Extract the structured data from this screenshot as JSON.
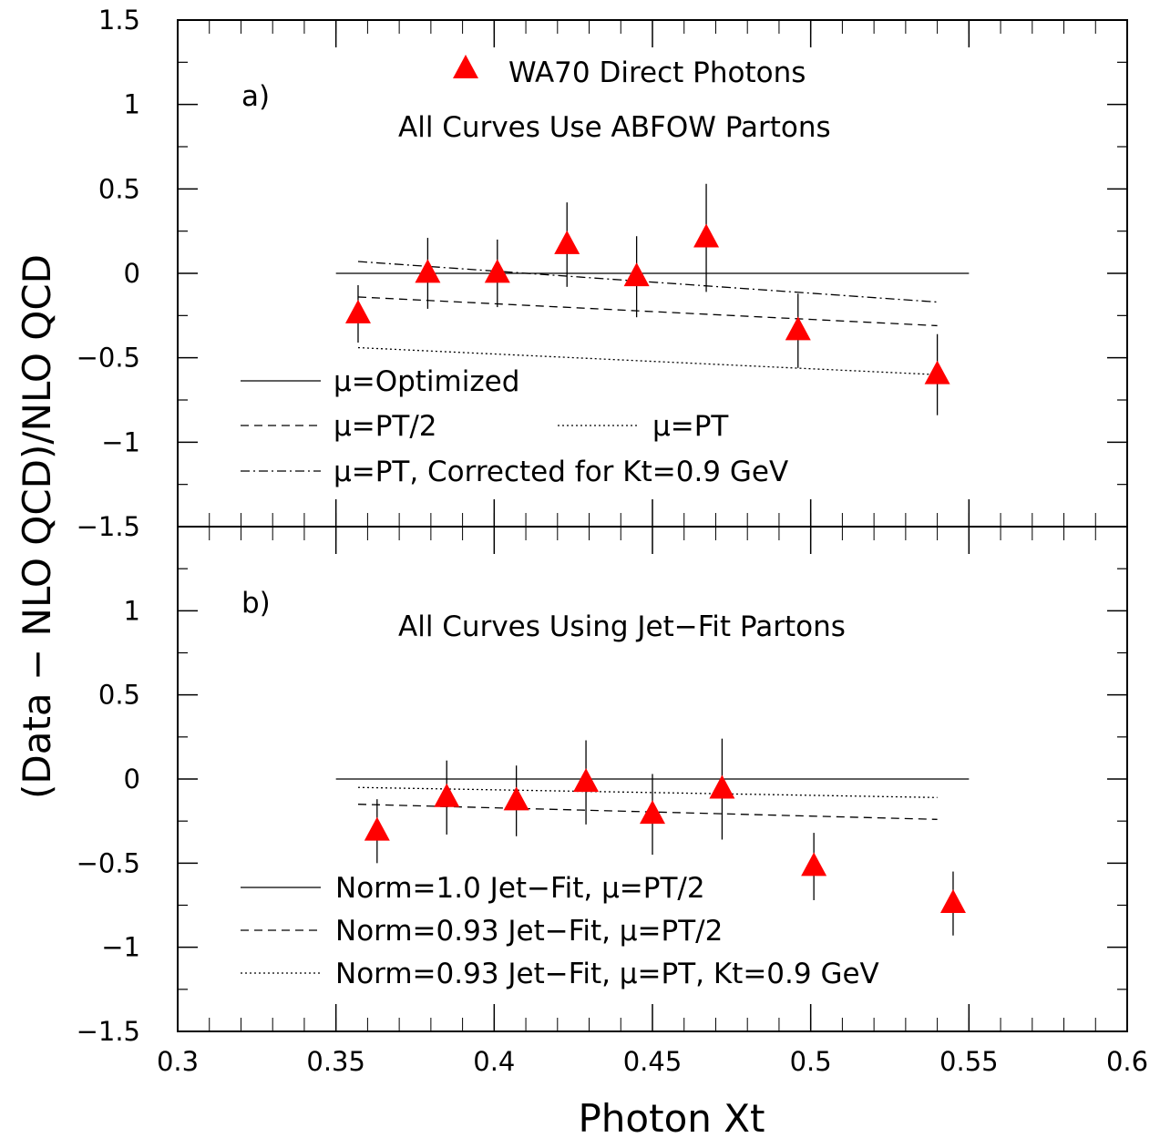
{
  "axes": {
    "xlabel": "Photon Xt",
    "ylabel": "(Data − NLO QCD)/NLO QCD"
  },
  "chart_data": [
    {
      "type": "scatter",
      "panel_label": "a)",
      "subtitle": "All Curves Use ABFOW Partons",
      "marker_legend": "WA70 Direct Photons",
      "xlim": [
        0.3,
        0.6
      ],
      "ylim": [
        -1.5,
        1.5
      ],
      "xticks": [
        "0.3",
        "0.35",
        "0.4",
        "0.45",
        "0.5",
        "0.55",
        "0.6"
      ],
      "yticks": [
        "1.5",
        "1",
        "0.5",
        "0",
        "−0.5",
        "−1",
        "−1.5"
      ],
      "ytick_values": [
        1.5,
        1,
        0.5,
        0,
        -0.5,
        -1,
        -1.5
      ],
      "points": [
        {
          "x": 0.357,
          "y": -0.24,
          "yerr": 0.17
        },
        {
          "x": 0.379,
          "y": 0.0,
          "yerr": 0.21
        },
        {
          "x": 0.401,
          "y": 0.0,
          "yerr": 0.2
        },
        {
          "x": 0.423,
          "y": 0.17,
          "yerr": 0.25
        },
        {
          "x": 0.445,
          "y": -0.02,
          "yerr": 0.24
        },
        {
          "x": 0.467,
          "y": 0.21,
          "yerr": 0.32
        },
        {
          "x": 0.496,
          "y": -0.34,
          "yerr": 0.22
        },
        {
          "x": 0.54,
          "y": -0.6,
          "yerr": 0.24
        }
      ],
      "series": [
        {
          "name": "μ=Optimized",
          "style": "solid",
          "x": [
            0.35,
            0.55
          ],
          "y": [
            0.0,
            0.0
          ]
        },
        {
          "name": "μ=PT/2",
          "style": "dashed",
          "x": [
            0.357,
            0.54
          ],
          "y": [
            -0.14,
            -0.31
          ]
        },
        {
          "name": "μ=PT",
          "style": "dotted",
          "x": [
            0.357,
            0.54
          ],
          "y": [
            -0.44,
            -0.6
          ]
        },
        {
          "name": "μ=PT, Corrected for Kt=0.9 GeV",
          "style": "dashdot",
          "x": [
            0.357,
            0.54
          ],
          "y": [
            0.07,
            -0.17
          ]
        }
      ],
      "legend": [
        {
          "name": "μ=Optimized",
          "style": "solid"
        },
        {
          "name": "μ=PT/2",
          "style": "dashed"
        },
        {
          "name": "μ=PT",
          "style": "dotted"
        },
        {
          "name": "μ=PT, Corrected for Kt=0.9 GeV",
          "style": "dashdot"
        }
      ]
    },
    {
      "type": "scatter",
      "panel_label": "b)",
      "subtitle": "All Curves Using Jet−Fit Partons",
      "xlim": [
        0.3,
        0.6
      ],
      "ylim": [
        -1.5,
        1.5
      ],
      "yticks": [
        "1.5",
        "1",
        "0.5",
        "0",
        "−0.5",
        "−1",
        "−1.5"
      ],
      "ytick_values": [
        1.5,
        1,
        0.5,
        0,
        -0.5,
        -1,
        -1.5
      ],
      "points": [
        {
          "x": 0.363,
          "y": -0.31,
          "yerr": 0.19
        },
        {
          "x": 0.385,
          "y": -0.11,
          "yerr": 0.22
        },
        {
          "x": 0.407,
          "y": -0.13,
          "yerr": 0.21
        },
        {
          "x": 0.429,
          "y": -0.02,
          "yerr": 0.25
        },
        {
          "x": 0.45,
          "y": -0.21,
          "yerr": 0.24
        },
        {
          "x": 0.472,
          "y": -0.06,
          "yerr": 0.3
        },
        {
          "x": 0.501,
          "y": -0.52,
          "yerr": 0.2
        },
        {
          "x": 0.545,
          "y": -0.74,
          "yerr": 0.19
        }
      ],
      "series": [
        {
          "name": "Norm=1.0 Jet−Fit, μ=PT/2",
          "style": "solid",
          "x": [
            0.35,
            0.55
          ],
          "y": [
            0.0,
            0.0
          ]
        },
        {
          "name": "Norm=0.93 Jet−Fit, μ=PT/2",
          "style": "dashed",
          "x": [
            0.357,
            0.54
          ],
          "y": [
            -0.15,
            -0.24
          ]
        },
        {
          "name": "Norm=0.93 Jet−Fit, μ=PT, Kt=0.9 GeV",
          "style": "dotted",
          "x": [
            0.357,
            0.54
          ],
          "y": [
            -0.05,
            -0.11
          ]
        }
      ],
      "legend": [
        {
          "name": "Norm=1.0 Jet−Fit, μ=PT/2",
          "style": "solid"
        },
        {
          "name": "Norm=0.93 Jet−Fit, μ=PT/2",
          "style": "dashed"
        },
        {
          "name": "Norm=0.93 Jet−Fit, μ=PT, Kt=0.9 GeV",
          "style": "dotted"
        }
      ]
    }
  ],
  "colors": {
    "marker": "#ff0000",
    "ink": "#000000",
    "background": "#ffffff"
  }
}
